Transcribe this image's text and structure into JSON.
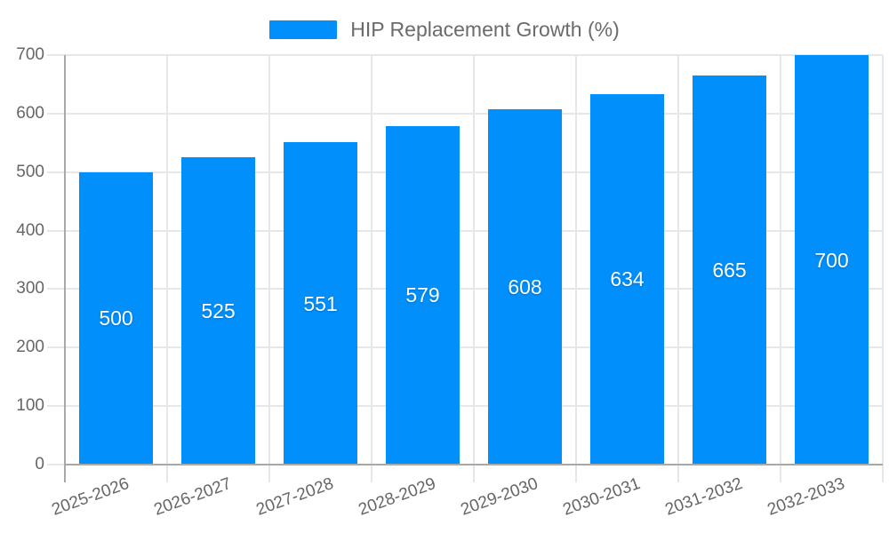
{
  "legend": {
    "label": "HIP Replacement Growth (%)",
    "swatch_color": "#008FFB"
  },
  "chart_data": {
    "type": "bar",
    "title": "",
    "categories": [
      "2025-2026",
      "2026-2027",
      "2027-2028",
      "2028-2029",
      "2029-2030",
      "2030-2031",
      "2031-2032",
      "2032-2033"
    ],
    "series": [
      {
        "name": "HIP Replacement Growth (%)",
        "values": [
          500,
          525,
          551,
          579,
          608,
          634,
          665,
          700
        ]
      }
    ],
    "value_labels": [
      500,
      525,
      551,
      579,
      608,
      634,
      665,
      700
    ],
    "xlabel": "",
    "ylabel": "",
    "ylim": [
      0,
      700
    ],
    "y_ticks": [
      0,
      100,
      200,
      300,
      400,
      500,
      600,
      700
    ],
    "grid": true,
    "legend_position": "top"
  },
  "colors": {
    "bar": "#008FFB",
    "grid": "#e7e7e7",
    "axis": "#a8a8a8",
    "axis_text": "#666666",
    "legend_text": "#6b6b6b",
    "bar_label": "#ffffff",
    "background": "#ffffff"
  }
}
